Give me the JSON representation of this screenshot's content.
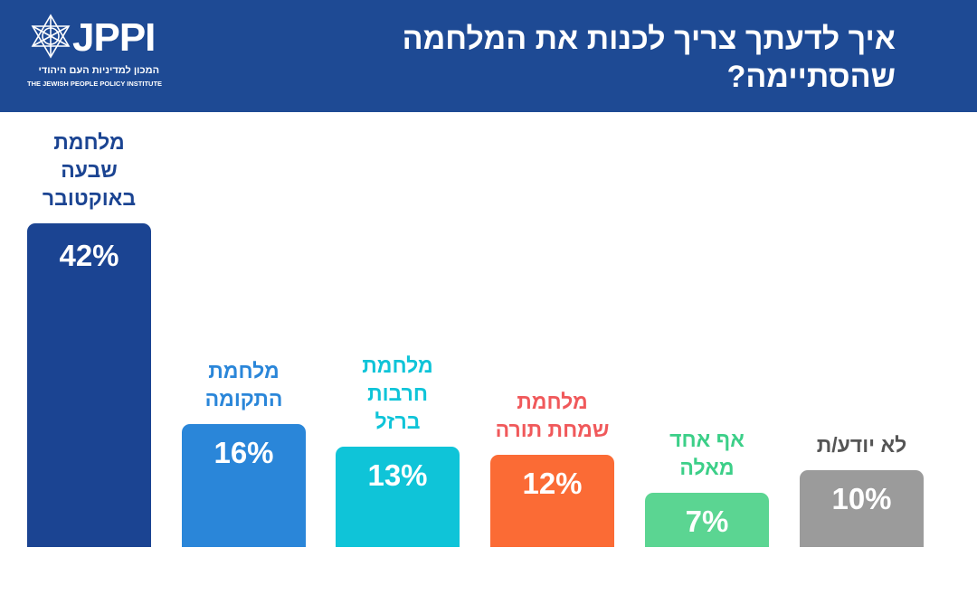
{
  "header": {
    "logo_text": "JPPI",
    "logo_sub_he": "המכון למדיניות העם היהודי",
    "logo_sub_en": "THE JEWISH PEOPLE POLICY INSTITUTE",
    "title": "איך לדעתך צריך לכנות את המלחמה שהסתיימה?"
  },
  "colors": {
    "header_bg": "#1e4a94",
    "bar_1": "#1b4492",
    "bar_2": "#2a86d9",
    "bar_3": "#0fc4d8",
    "bar_4": "#fb6b35",
    "bar_5": "#5bd592",
    "bar_6": "#9b9b9b",
    "label_1": "#1b4492",
    "label_2": "#2a86d9",
    "label_3": "#0fc4d8",
    "label_4": "#f0595b",
    "label_5": "#3ccf88",
    "label_6": "#555555"
  },
  "chart_data": {
    "type": "bar",
    "title": "איך לדעתך צריך לכנות את המלחמה שהסתיימה?",
    "categories": [
      "מלחמת שבעה באוקטובר",
      "מלחמת התקומה",
      "מלחמת חרבות ברזל",
      "מלחמת שמחת תורה",
      "אף אחד מאלה",
      "לא יודע/ת"
    ],
    "label_lines": [
      "מלחמת\nשבעה\nבאוקטובר",
      "מלחמת\nהתקומה",
      "מלחמת\nחרבות\nברזל",
      "מלחמת\nשמחת תורה",
      "אף אחד\nמאלה",
      "לא יודע/ת"
    ],
    "values": [
      42,
      16,
      13,
      12,
      7,
      10
    ],
    "value_labels": [
      "42%",
      "16%",
      "13%",
      "12%",
      "7%",
      "10%"
    ],
    "unit": "%",
    "ylim": [
      0,
      42
    ],
    "xlabel": "",
    "ylabel": "",
    "grid": false,
    "legend": "none"
  }
}
